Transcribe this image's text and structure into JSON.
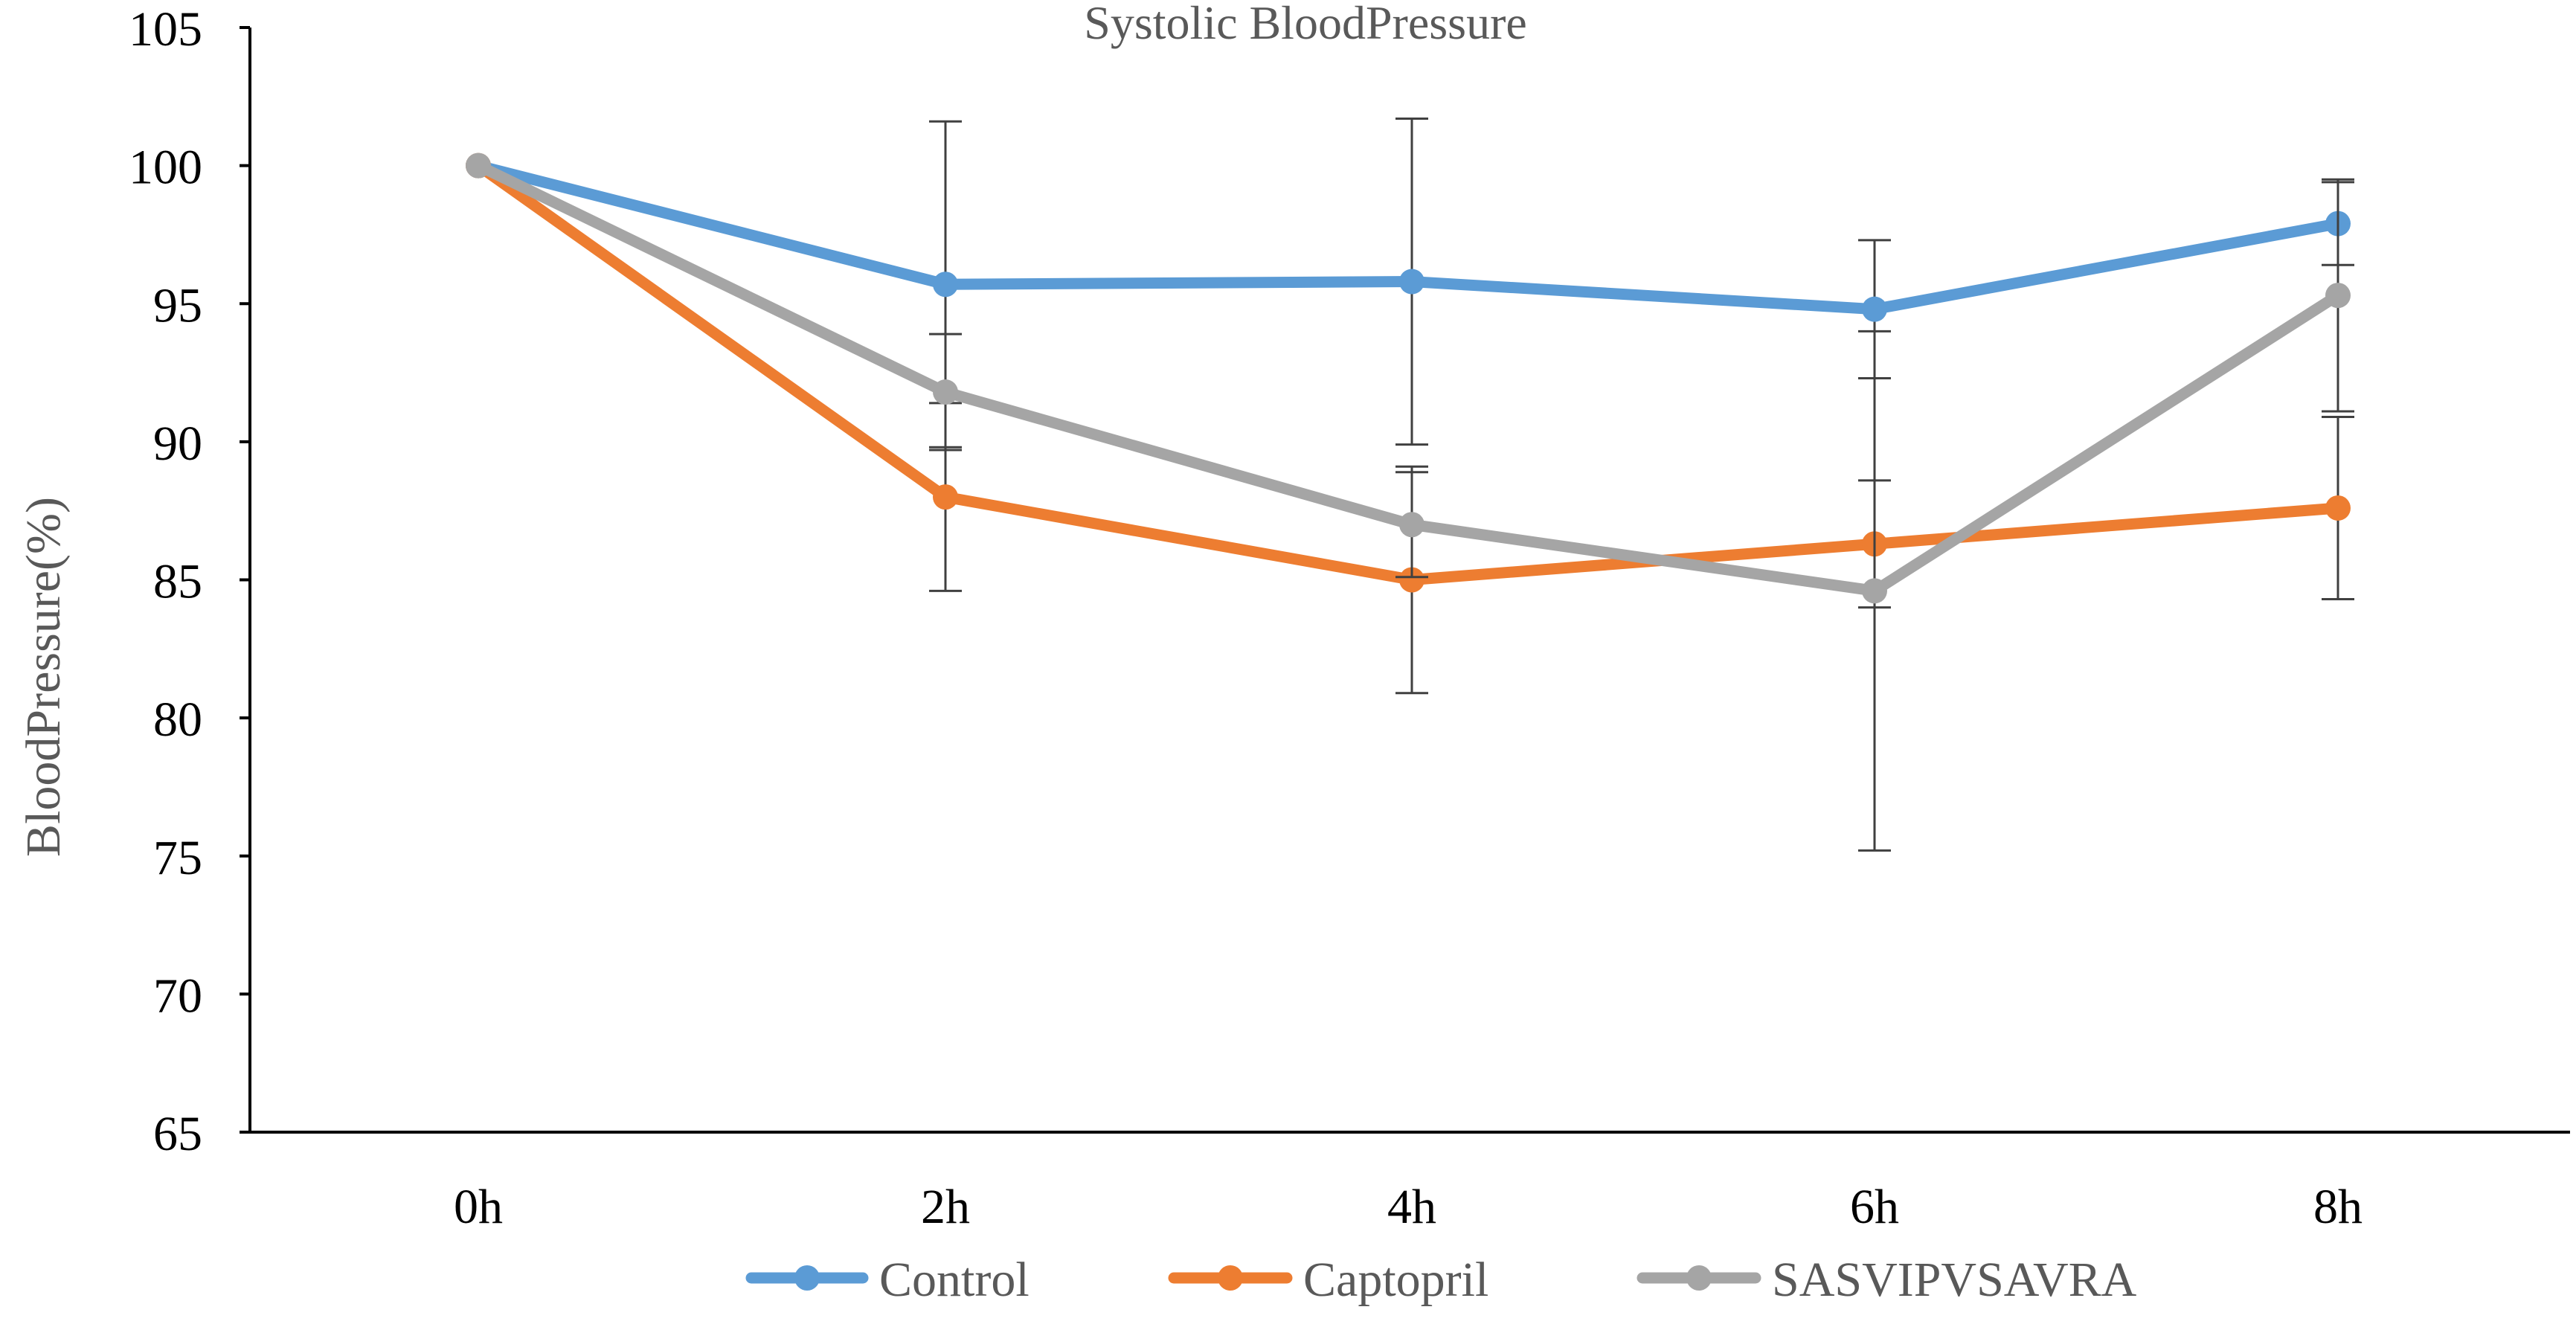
{
  "chart_data": {
    "type": "line",
    "title": "Systolic BloodPressure",
    "xlabel": "",
    "ylabel": "BloodPressure(%)",
    "categories": [
      "0h",
      "2h",
      "4h",
      "6h",
      "8h"
    ],
    "ylim": [
      65,
      105
    ],
    "yticks": [
      65,
      70,
      75,
      80,
      85,
      90,
      95,
      100,
      105
    ],
    "grid": false,
    "legend_position": "bottom",
    "series": [
      {
        "name": "Control",
        "color": "#5b9bd5",
        "values": [
          100,
          95.7,
          95.8,
          94.8,
          97.9
        ],
        "errors": [
          0,
          5.9,
          5.9,
          2.5,
          1.5
        ]
      },
      {
        "name": "Captopril",
        "color": "#ed7d31",
        "values": [
          100,
          88.0,
          85.0,
          86.3,
          87.6
        ],
        "errors": [
          0,
          3.4,
          4.1,
          2.3,
          3.3
        ]
      },
      {
        "name": "SASVIPVSAVRA",
        "color": "#a5a5a5",
        "values": [
          100,
          91.8,
          87.0,
          84.6,
          95.3
        ],
        "errors": [
          0,
          2.1,
          1.9,
          9.4,
          4.2
        ]
      }
    ]
  }
}
